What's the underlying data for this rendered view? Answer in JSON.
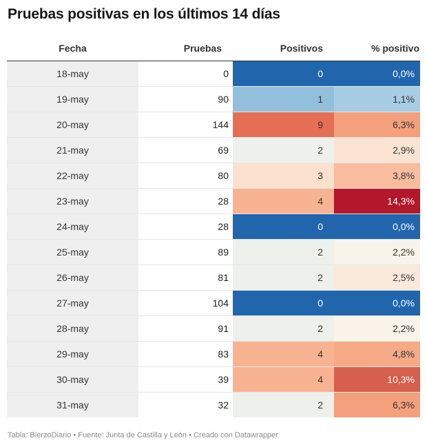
{
  "title": "Pruebas positivas en los últimos 14 días",
  "columns": {
    "fecha": "Fecha",
    "pruebas": "Pruebas",
    "positivos": "Positivos",
    "pct": "% positivo"
  },
  "footer": "Tabla: BierzoDiario • Fuente: Junta de Castilla y León • Creado con Datawrapper",
  "chart_data": {
    "type": "table",
    "title": "Pruebas positivas en los últimos 14 días",
    "columns": [
      "Fecha",
      "Pruebas",
      "Positivos",
      "% positivo"
    ],
    "rows": [
      {
        "fecha": "18-may",
        "pruebas": 0,
        "positivos": 0,
        "pct": "0,0%",
        "pos_color": "#2166ac",
        "pct_color": "#2166ac"
      },
      {
        "fecha": "19-may",
        "pruebas": 90,
        "positivos": 1,
        "pct": "1,1%",
        "pos_color": "#92c0dc",
        "pct_color": "#a7cde4"
      },
      {
        "fecha": "20-may",
        "pruebas": 144,
        "positivos": 9,
        "pct": "6,3%",
        "pos_color": "#e46f55",
        "pct_color": "#f4a07c"
      },
      {
        "fecha": "21-may",
        "pruebas": 69,
        "positivos": 2,
        "pct": "2,9%",
        "pos_color": "#eef0eb",
        "pct_color": "#fbe3d3"
      },
      {
        "fecha": "22-may",
        "pruebas": 80,
        "positivos": 3,
        "pct": "3,8%",
        "pos_color": "#fce1ce",
        "pct_color": "#f9bc9e"
      },
      {
        "fecha": "23-may",
        "pruebas": 28,
        "positivos": 4,
        "pct": "14,3%",
        "pos_color": "#f8b393",
        "pct_color": "#b2172b"
      },
      {
        "fecha": "24-may",
        "pruebas": 28,
        "positivos": 0,
        "pct": "0,0%",
        "pos_color": "#2166ac",
        "pct_color": "#2166ac"
      },
      {
        "fecha": "25-may",
        "pruebas": 89,
        "positivos": 2,
        "pct": "2,2%",
        "pos_color": "#eef0eb",
        "pct_color": "#f8f4e9"
      },
      {
        "fecha": "26-may",
        "pruebas": 81,
        "positivos": 2,
        "pct": "2,5%",
        "pos_color": "#eef0eb",
        "pct_color": "#faeadc"
      },
      {
        "fecha": "27-may",
        "pruebas": 104,
        "positivos": 0,
        "pct": "0,0%",
        "pos_color": "#2166ac",
        "pct_color": "#2166ac"
      },
      {
        "fecha": "28-may",
        "pruebas": 91,
        "positivos": 2,
        "pct": "2,2%",
        "pos_color": "#eef0eb",
        "pct_color": "#f8f4e9"
      },
      {
        "fecha": "29-may",
        "pruebas": 83,
        "positivos": 4,
        "pct": "4,8%",
        "pos_color": "#f8b393",
        "pct_color": "#f6aa87"
      },
      {
        "fecha": "30-may",
        "pruebas": 39,
        "positivos": 4,
        "pct": "10,3%",
        "pos_color": "#f8b393",
        "pct_color": "#d6604d"
      },
      {
        "fecha": "31-may",
        "pruebas": 32,
        "positivos": 2,
        "pct": "6,3%",
        "pos_color": "#eef0eb",
        "pct_color": "#f4a07c"
      }
    ]
  }
}
